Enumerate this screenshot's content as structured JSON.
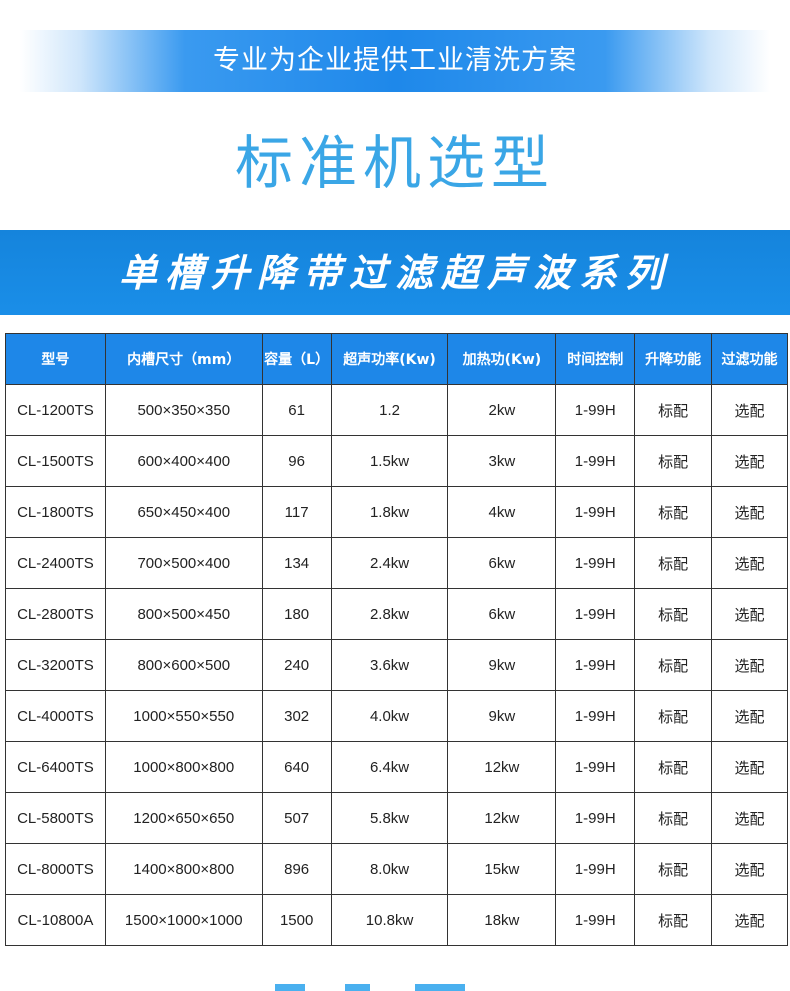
{
  "slogan": "专业为企业提供工业清洗方案",
  "title": "标准机选型",
  "series_title": "单槽升降带过滤超声波系列",
  "colors": {
    "accent": "#1e87e8",
    "title_blue": "#3aa6e6"
  },
  "table": {
    "headers": [
      "型号",
      "内槽尺寸（mm）",
      "容量（L）",
      "超声功率(Kw)",
      "加热功(Kw)",
      "时间控制",
      "升降功能",
      "过滤功能"
    ],
    "rows": [
      [
        "CL-1200TS",
        "500×350×350",
        "61",
        "1.2",
        "2kw",
        "1-99H",
        "标配",
        "选配"
      ],
      [
        "CL-1500TS",
        "600×400×400",
        "96",
        "1.5kw",
        "3kw",
        "1-99H",
        "标配",
        "选配"
      ],
      [
        "CL-1800TS",
        "650×450×400",
        "117",
        "1.8kw",
        "4kw",
        "1-99H",
        "标配",
        "选配"
      ],
      [
        "CL-2400TS",
        "700×500×400",
        "134",
        "2.4kw",
        "6kw",
        "1-99H",
        "标配",
        "选配"
      ],
      [
        "CL-2800TS",
        "800×500×450",
        "180",
        "2.8kw",
        "6kw",
        "1-99H",
        "标配",
        "选配"
      ],
      [
        "CL-3200TS",
        "800×600×500",
        "240",
        "3.6kw",
        "9kw",
        "1-99H",
        "标配",
        "选配"
      ],
      [
        "CL-4000TS",
        "1000×550×550",
        "302",
        "4.0kw",
        "9kw",
        "1-99H",
        "标配",
        "选配"
      ],
      [
        "CL-6400TS",
        "1000×800×800",
        "640",
        "6.4kw",
        "12kw",
        "1-99H",
        "标配",
        "选配"
      ],
      [
        "CL-5800TS",
        "1200×650×650",
        "507",
        "5.8kw",
        "12kw",
        "1-99H",
        "标配",
        "选配"
      ],
      [
        "CL-8000TS",
        "1400×800×800",
        "896",
        "8.0kw",
        "15kw",
        "1-99H",
        "标配",
        "选配"
      ],
      [
        "CL-10800A",
        "1500×1000×1000",
        "1500",
        "10.8kw",
        "18kw",
        "1-99H",
        "标配",
        "选配"
      ]
    ]
  }
}
